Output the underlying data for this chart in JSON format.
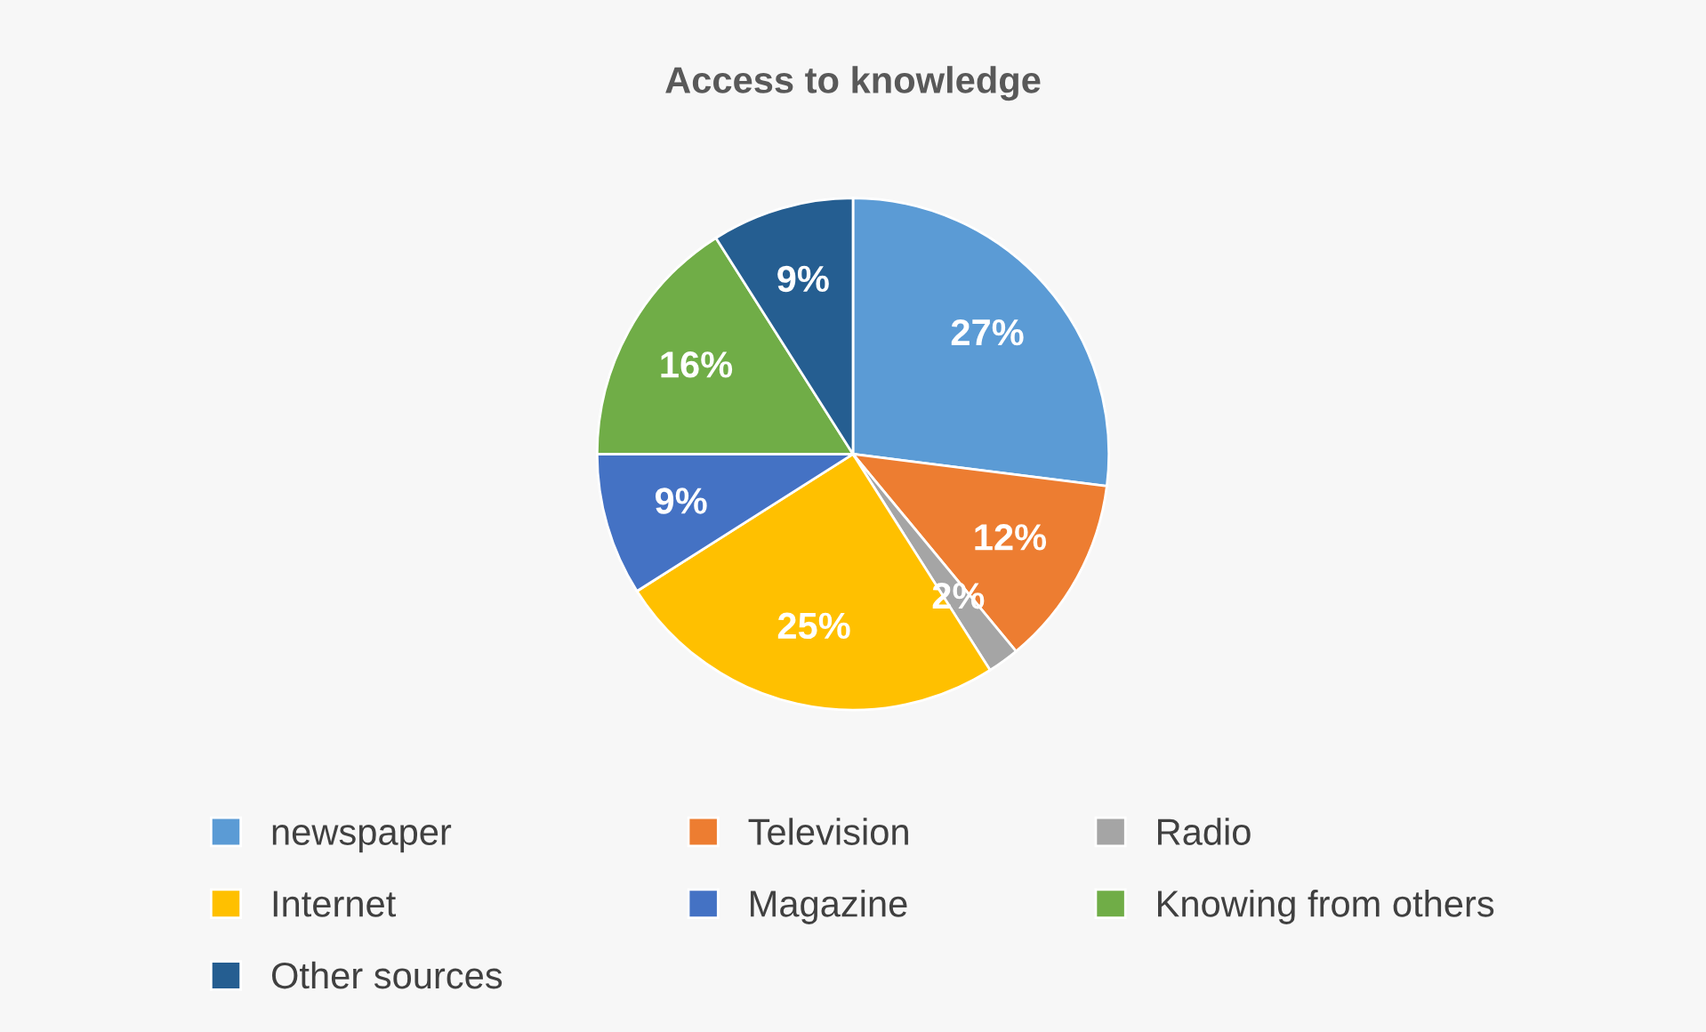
{
  "chart_data": {
    "type": "pie",
    "title": "Access to knowledge",
    "categories": [
      "newspaper",
      "Television",
      "Radio",
      "Internet",
      "Magazine",
      "Knowing from others",
      "Other sources"
    ],
    "values": [
      27,
      12,
      2,
      25,
      9,
      16,
      9
    ],
    "colors": [
      "#5b9bd5",
      "#ed7d31",
      "#a5a5a5",
      "#ffc000",
      "#4472c4",
      "#70ad47",
      "#255e91"
    ],
    "value_labels": [
      "27%",
      "12%",
      "2%",
      "25%",
      "9%",
      "16%",
      "9%"
    ],
    "legend": "bottom"
  }
}
